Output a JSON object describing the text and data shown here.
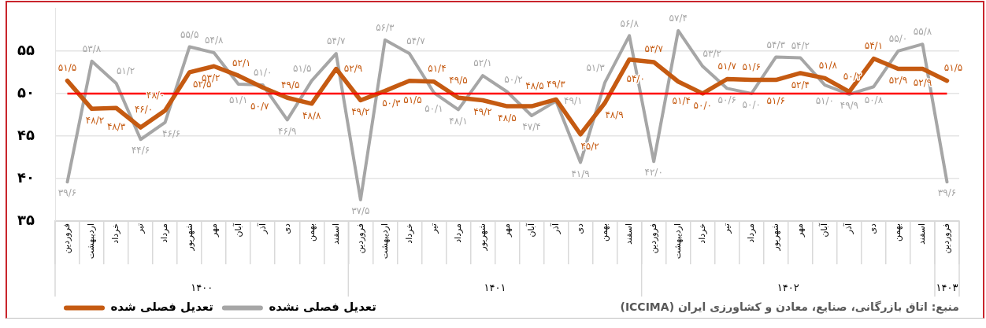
{
  "chart_data": {
    "type": "line",
    "categories": [
      "فروردین",
      "اردیبهشت",
      "خرداد",
      "تیر",
      "مرداد",
      "شهریور",
      "مهر",
      "آبان",
      "آذر",
      "دی",
      "بهمن",
      "اسفند",
      "فروردین",
      "اردیبهشت",
      "خرداد",
      "تیر",
      "مرداد",
      "شهریور",
      "مهر",
      "آبان",
      "آذر",
      "دی",
      "بهمن",
      "اسفند",
      "فروردین",
      "اردیبهشت",
      "خرداد",
      "تیر",
      "مرداد",
      "شهریور",
      "مهر",
      "آبان",
      "آذر",
      "دی",
      "بهمن",
      "اسفند",
      "فروردین"
    ],
    "series": [
      {
        "name": "تعدیل فصلی شده",
        "color": "#c55a11",
        "values": [
          51.5,
          48.2,
          48.3,
          46.0,
          48.0,
          52.5,
          53.2,
          52.1,
          50.7,
          49.5,
          48.8,
          52.9,
          49.2,
          50.3,
          51.5,
          51.4,
          49.5,
          49.2,
          48.5,
          48.5,
          49.3,
          45.2,
          48.9,
          54.0,
          53.7,
          51.4,
          50.0,
          51.7,
          51.6,
          51.6,
          52.4,
          51.8,
          50.2,
          54.1,
          52.9,
          52.9,
          51.5
        ],
        "value_labels": [
          "۵۱/۵",
          "۴۸/۲",
          "۴۸/۳",
          "۴۶/۰",
          "۴۸/۰",
          "۵۲/۵",
          "۵۳/۲",
          "۵۲/۱",
          "۵۰/۷",
          "۴۹/۵",
          "۴۸/۸",
          "۵۲/۹",
          "۴۹/۲",
          "۵۰/۳",
          "۵۱/۵",
          "۵۱/۴",
          "۴۹/۵",
          "۴۹/۲",
          "۴۸/۵",
          "۴۸/۵",
          "۴۹/۳",
          "۴۵/۲",
          "۴۸/۹",
          "۵۴/۰",
          "۵۳/۷",
          "۵۱/۴",
          "۵۰/۰",
          "۵۱/۷",
          "۵۱/۶",
          "۵۱/۶",
          "۵۲/۴",
          "۵۱/۸",
          "۵۰/۲",
          "۵۴/۱",
          "۵۲/۹",
          "۵۲/۹",
          "۵۱/۵"
        ]
      },
      {
        "name": "تعدیل فصلی نشده",
        "color": "#a6a6a6",
        "values": [
          39.6,
          53.8,
          51.2,
          44.6,
          46.6,
          55.5,
          54.8,
          51.1,
          51.0,
          46.9,
          51.5,
          54.7,
          37.5,
          56.3,
          54.7,
          50.1,
          48.1,
          52.1,
          50.2,
          47.4,
          49.1,
          41.9,
          51.3,
          56.8,
          42.0,
          57.4,
          53.2,
          50.6,
          50.0,
          54.3,
          54.2,
          51.0,
          49.9,
          50.8,
          55.0,
          55.8,
          39.6
        ],
        "value_labels": [
          "۳۹/۶",
          "۵۳/۸",
          "۵۱/۲",
          "۴۴/۶",
          "۴۶/۶",
          "۵۵/۵",
          "۵۴/۸",
          "۵۱/۱",
          "۵۱/۰",
          "۴۶/۹",
          "۵۱/۵",
          "۵۴/۷",
          "۳۷/۵",
          "۵۶/۳",
          "۵۴/۷",
          "۵۰/۱",
          "۴۸/۱",
          "۵۲/۱",
          "۵۰/۲",
          "۴۷/۴",
          "۴۹/۱",
          "۴۱/۹",
          "۵۱/۳",
          "۵۶/۸",
          "۴۲/۰",
          "۵۷/۴",
          "۵۳/۲",
          "۵۰/۶",
          "۵۰/۰",
          "۵۴/۳",
          "۵۴/۲",
          "۵۱/۰",
          "۴۹/۹",
          "۵۰/۸",
          "۵۵/۰",
          "۵۵/۸",
          "۳۹/۶"
        ]
      }
    ],
    "ylim": [
      35,
      60
    ],
    "yticks": [
      {
        "value": 35,
        "label": "۳۵"
      },
      {
        "value": 40,
        "label": "۴۰"
      },
      {
        "value": 45,
        "label": "۴۵"
      },
      {
        "value": 50,
        "label": "۵۰"
      },
      {
        "value": 55,
        "label": "۵۵"
      }
    ],
    "grid": "y",
    "legend": "bottom left",
    "marker": "none",
    "line_style": "solid",
    "ref_lines": [
      {
        "axis": "y",
        "value": 50,
        "color": "#ff0000"
      }
    ],
    "annotations": [
      "۱۴۰۰",
      "۱۴۰۱",
      "۱۴۰۲",
      "۱۴۰۳",
      "منبع: اتاق بازرگانی، صنایع، معادن و کشاورزی ایران (ICCIMA)"
    ]
  }
}
